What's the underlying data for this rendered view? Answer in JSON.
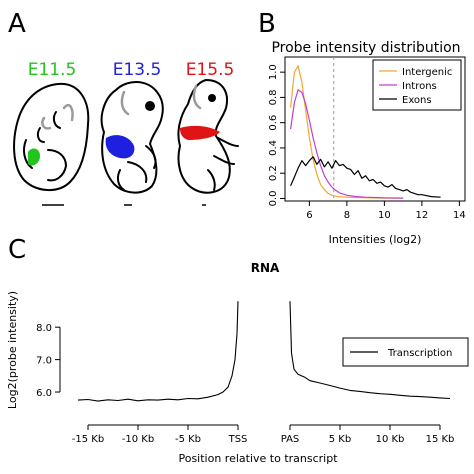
{
  "panels": {
    "a": {
      "letter": "A"
    },
    "b": {
      "letter": "B"
    },
    "c": {
      "letter": "C"
    }
  },
  "embryos": [
    {
      "stage": "E11.5",
      "color": "#22c41e"
    },
    {
      "stage": "E13.5",
      "color": "#1f1fe0"
    },
    {
      "stage": "E15.5",
      "color": "#e01414"
    }
  ],
  "chart_data": [
    {
      "type": "line",
      "title": "Probe intensity distribution",
      "xlabel": "Intensities (log2)",
      "ylabel": "",
      "xlim": [
        4.7,
        14.3
      ],
      "ylim": [
        -0.02,
        1.12
      ],
      "xticks": [
        6,
        8,
        10,
        12,
        14
      ],
      "yticks": [
        0.0,
        0.2,
        0.4,
        0.6,
        0.8,
        1.0
      ],
      "ytick_labels": [
        "0.0",
        "0.2",
        "0.4",
        "0.6",
        "0.8",
        "1.0"
      ],
      "vline": 7.3,
      "legend_position": "top-right",
      "series": [
        {
          "name": "Intergenic",
          "color": "#f0a830",
          "x": [
            5.0,
            5.2,
            5.4,
            5.6,
            5.8,
            6.0,
            6.2,
            6.4,
            6.6,
            6.8,
            7.0,
            7.2,
            7.5,
            8.0,
            9.0,
            10.0,
            11.0
          ],
          "y": [
            0.72,
            1.0,
            1.05,
            0.92,
            0.7,
            0.48,
            0.31,
            0.19,
            0.11,
            0.07,
            0.04,
            0.025,
            0.015,
            0.01,
            0.005,
            0.003,
            0.002
          ]
        },
        {
          "name": "Introns",
          "color": "#c040d0",
          "x": [
            5.0,
            5.2,
            5.4,
            5.6,
            5.8,
            6.0,
            6.2,
            6.4,
            6.6,
            6.8,
            7.0,
            7.2,
            7.4,
            7.6,
            8.0,
            8.5,
            9.0,
            10.0,
            11.0
          ],
          "y": [
            0.55,
            0.76,
            0.86,
            0.84,
            0.75,
            0.62,
            0.48,
            0.36,
            0.26,
            0.18,
            0.13,
            0.09,
            0.065,
            0.045,
            0.025,
            0.015,
            0.01,
            0.005,
            0.003
          ]
        },
        {
          "name": "Exons",
          "color": "#000000",
          "x": [
            5.0,
            5.2,
            5.4,
            5.6,
            5.8,
            6.0,
            6.2,
            6.4,
            6.6,
            6.8,
            7.0,
            7.2,
            7.4,
            7.6,
            7.8,
            8.0,
            8.2,
            8.4,
            8.6,
            8.8,
            9.0,
            9.2,
            9.4,
            9.6,
            9.8,
            10.0,
            10.2,
            10.4,
            10.6,
            10.8,
            11.0,
            11.2,
            11.4,
            11.6,
            11.8,
            12.0,
            12.5,
            13.0
          ],
          "y": [
            0.1,
            0.17,
            0.24,
            0.3,
            0.26,
            0.3,
            0.33,
            0.27,
            0.31,
            0.25,
            0.29,
            0.24,
            0.3,
            0.26,
            0.27,
            0.24,
            0.23,
            0.19,
            0.22,
            0.16,
            0.18,
            0.14,
            0.15,
            0.12,
            0.13,
            0.1,
            0.09,
            0.11,
            0.08,
            0.07,
            0.06,
            0.07,
            0.05,
            0.04,
            0.03,
            0.03,
            0.015,
            0.01
          ]
        }
      ]
    },
    {
      "type": "line",
      "title": "RNA",
      "xlabel": "Position relative to transcript",
      "ylabel": "Log2(probe intensity)",
      "ylim": [
        5.6,
        8.9
      ],
      "yticks": [
        6.0,
        7.0,
        8.0
      ],
      "ytick_labels": [
        "6.0",
        "7.0",
        "8.0"
      ],
      "xtick_labels": [
        "-15 Kb",
        "-10 Kb",
        "-5 Kb",
        "TSS",
        "PAS",
        "5 Kb",
        "10 Kb",
        "15 Kb"
      ],
      "legend_position": "right",
      "segments": [
        {
          "region": "upstream",
          "xlim": [
            -16,
            0
          ],
          "x": [
            -16,
            -15,
            -14,
            -13,
            -12,
            -11,
            -10,
            -9,
            -8,
            -7,
            -6,
            -5,
            -4,
            -3,
            -2,
            -1.5,
            -1,
            -0.6,
            -0.3,
            -0.1,
            0
          ],
          "y": [
            5.75,
            5.77,
            5.72,
            5.76,
            5.74,
            5.78,
            5.73,
            5.76,
            5.75,
            5.78,
            5.76,
            5.8,
            5.79,
            5.84,
            5.92,
            6.0,
            6.15,
            6.5,
            7.0,
            7.8,
            8.8
          ]
        },
        {
          "region": "downstream",
          "xlim": [
            0,
            16
          ],
          "x": [
            0,
            0.15,
            0.4,
            0.8,
            1.5,
            2,
            3,
            4,
            5,
            6,
            7,
            8,
            9,
            10,
            11,
            12,
            13,
            14,
            15,
            16
          ],
          "y": [
            8.8,
            7.2,
            6.7,
            6.55,
            6.45,
            6.35,
            6.28,
            6.2,
            6.12,
            6.05,
            6.02,
            5.98,
            5.95,
            5.93,
            5.9,
            5.87,
            5.86,
            5.84,
            5.82,
            5.8
          ]
        }
      ],
      "series": [
        {
          "name": "Transcription",
          "color": "#000000"
        }
      ]
    }
  ]
}
